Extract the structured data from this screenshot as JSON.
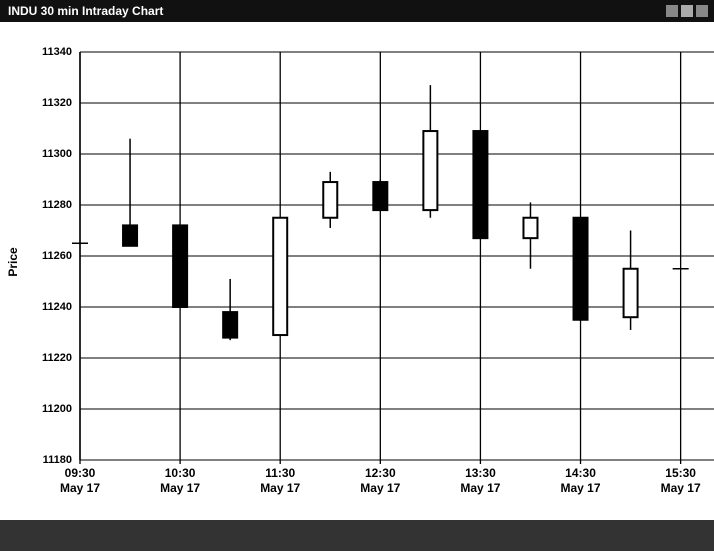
{
  "chart_data": {
    "type": "candlestick",
    "title": "INDU 30 min Intraday Chart",
    "y_label": "Price",
    "x": [
      "09:30",
      "10:00",
      "10:30",
      "11:00",
      "11:30",
      "12:00",
      "12:30",
      "13:00",
      "13:30",
      "14:00",
      "14:30",
      "15:00",
      "15:30"
    ],
    "open": [
      11265,
      11272,
      11272,
      11238,
      11229,
      11275,
      11289,
      11278,
      11309,
      11267,
      11275,
      11236,
      11255
    ],
    "high": [
      11265,
      11306,
      11272,
      11251,
      11275,
      11293,
      11290,
      11327,
      11309,
      11281,
      11275,
      11270,
      11255
    ],
    "low": [
      11265,
      11264,
      11240,
      11227,
      11229,
      11271,
      11278,
      11275,
      11267,
      11255,
      11235,
      11231,
      11255
    ],
    "close": [
      11265,
      11264,
      11240,
      11228,
      11275,
      11289,
      11278,
      11309,
      11267,
      11275,
      11235,
      11255,
      11255
    ],
    "up_color": "#ffffff",
    "down_color": "#000000",
    "xlim": [
      "09:30",
      "15:50"
    ],
    "xticks": [
      "09:30",
      "10:30",
      "11:30",
      "12:30",
      "13:30",
      "14:30",
      "15:30"
    ],
    "xtick_dates": [
      "May 17",
      "May 17",
      "May 17",
      "May 17",
      "May 17",
      "May 17",
      "May 17"
    ],
    "ylim": [
      11180,
      11340
    ],
    "yticks": [
      11180,
      11200,
      11220,
      11240,
      11260,
      11280,
      11300,
      11320,
      11340
    ],
    "grid": true
  }
}
